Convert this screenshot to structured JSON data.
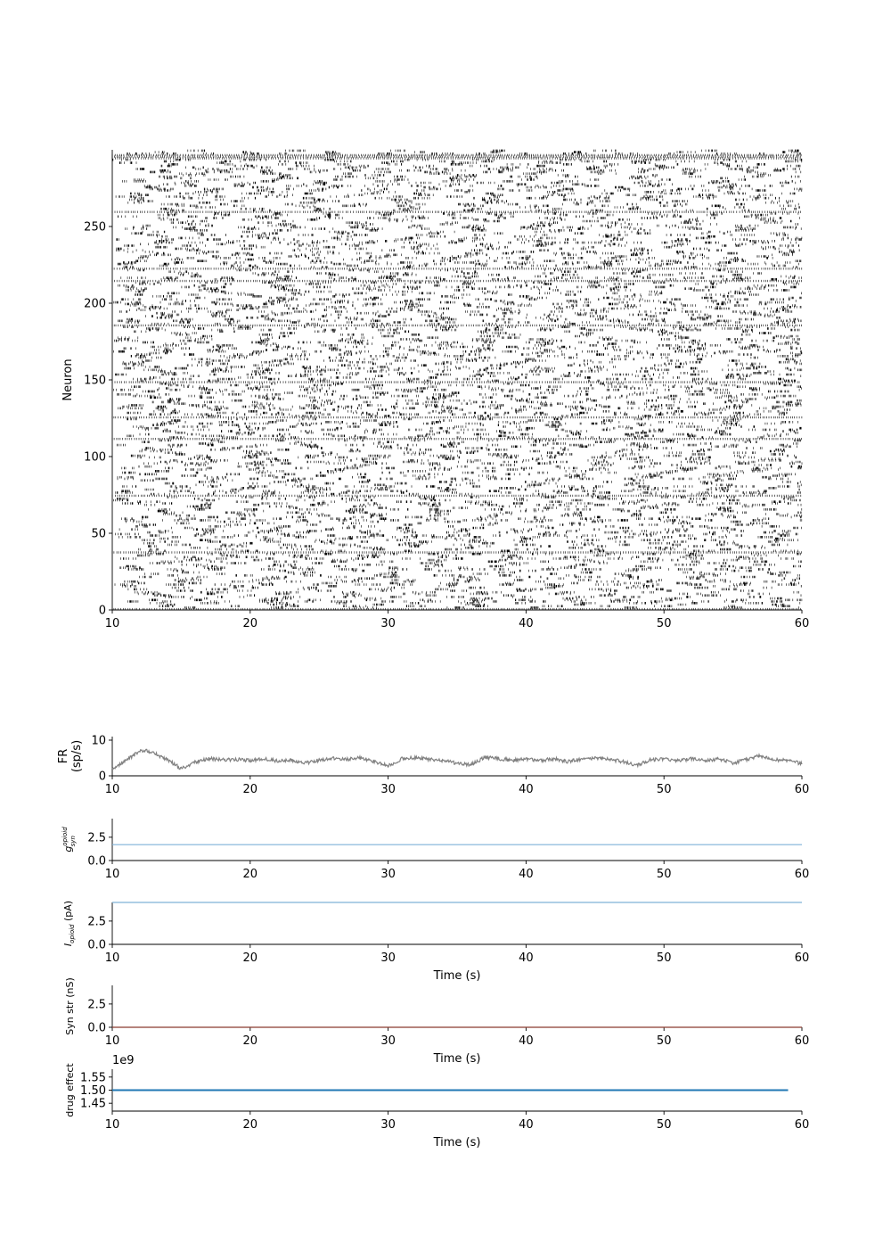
{
  "chart_data": [
    {
      "type": "raster",
      "xlabel": "",
      "ylabel": "Neuron",
      "xlim": [
        10,
        60
      ],
      "ylim": [
        0,
        300
      ],
      "xticks": [
        "10",
        "20",
        "30",
        "40",
        "50",
        "60"
      ],
      "yticks": [
        "0",
        "50",
        "100",
        "150",
        "200",
        "250"
      ],
      "n_neurons": 300,
      "color": "#000000"
    },
    {
      "type": "line",
      "xlabel": "",
      "ylabel": "FR\n(sp/s)",
      "xlim": [
        10,
        60
      ],
      "ylim": [
        0,
        11
      ],
      "xticks": [
        "10",
        "20",
        "30",
        "40",
        "50",
        "60"
      ],
      "yticks": [
        "0",
        "10"
      ],
      "color": "#808080",
      "series": [
        {
          "x": [
            10,
            11,
            12,
            12.5,
            13,
            14,
            15,
            16,
            17,
            18,
            19,
            20,
            21,
            22,
            23,
            24,
            25,
            26,
            27,
            28,
            29,
            30,
            31,
            32,
            33,
            34,
            35,
            36,
            37,
            38,
            39,
            40,
            41,
            42,
            43,
            44,
            45,
            46,
            47,
            48,
            49,
            50,
            51,
            52,
            53,
            54,
            55,
            56,
            57,
            58,
            59,
            60
          ],
          "values": [
            1.8,
            4.5,
            6.8,
            7.0,
            6.5,
            4.5,
            2.0,
            3.8,
            4.8,
            4.5,
            4.6,
            4.3,
            4.8,
            4.2,
            4.4,
            3.6,
            4.4,
            4.9,
            4.6,
            5.0,
            4.0,
            2.8,
            4.8,
            5.0,
            4.6,
            4.2,
            3.5,
            3.0,
            5.2,
            4.8,
            4.4,
            4.6,
            4.3,
            4.8,
            4.0,
            4.6,
            5.0,
            4.6,
            4.0,
            2.8,
            4.5,
            4.6,
            4.2,
            4.8,
            4.2,
            4.8,
            3.6,
            4.6,
            5.6,
            4.6,
            4.2,
            3.4
          ]
        }
      ]
    },
    {
      "type": "line",
      "xlabel": "",
      "ylabel": "g_syn^{opioid}",
      "xlim": [
        10,
        60
      ],
      "ylim": [
        0,
        4.5
      ],
      "xticks": [
        "10",
        "20",
        "30",
        "40",
        "50",
        "60"
      ],
      "yticks": [
        "0.0",
        "2.5"
      ],
      "color": "#7fb2d8",
      "series": [
        {
          "x": [
            10,
            60
          ],
          "values": [
            1.7,
            1.7
          ]
        }
      ]
    },
    {
      "type": "line",
      "xlabel": "Time (s)",
      "ylabel": "I_opioid (pA)",
      "xlim": [
        10,
        60
      ],
      "ylim": [
        0,
        4.5
      ],
      "xticks": [
        "10",
        "20",
        "30",
        "40",
        "50",
        "60"
      ],
      "yticks": [
        "0.0",
        "2.5"
      ],
      "color": "#7fb2d8",
      "series": [
        {
          "x": [
            10,
            60
          ],
          "values": [
            4.5,
            4.5
          ]
        }
      ]
    },
    {
      "type": "line",
      "xlabel": "Time (s)",
      "ylabel": "Syn str (nS)",
      "xlim": [
        10,
        60
      ],
      "ylim": [
        0,
        4.5
      ],
      "xticks": [
        "10",
        "20",
        "30",
        "40",
        "50",
        "60"
      ],
      "yticks": [
        "0.0",
        "2.5"
      ],
      "color": "#8b3a2f",
      "series": [
        {
          "x": [
            10,
            60
          ],
          "values": [
            0.0,
            0.0
          ]
        }
      ]
    },
    {
      "type": "line",
      "xlabel": "Time (s)",
      "ylabel": "drug effect",
      "offset_label": "1e9",
      "xlim": [
        10,
        60
      ],
      "ylim": [
        1.42,
        1.58
      ],
      "xticks": [
        "10",
        "20",
        "30",
        "40",
        "50",
        "60"
      ],
      "yticks": [
        "1.45",
        "1.50",
        "1.55"
      ],
      "color": "#1f77b4",
      "series": [
        {
          "x": [
            10,
            59
          ],
          "values": [
            1.5,
            1.5
          ]
        }
      ]
    }
  ]
}
